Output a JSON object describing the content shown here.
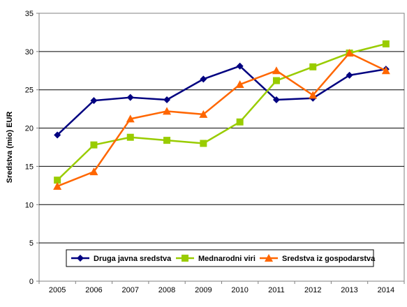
{
  "chart_data": {
    "type": "line",
    "title": "",
    "xlabel": "",
    "ylabel": "Sredstva (mio) EUR",
    "categories": [
      "2005",
      "2006",
      "2007",
      "2008",
      "2009",
      "2010",
      "2011",
      "2012",
      "2013",
      "2014"
    ],
    "ylim": [
      0,
      35
    ],
    "yticks": [
      0,
      5,
      10,
      15,
      20,
      25,
      30,
      35
    ],
    "grid": "horizontal",
    "legend_position": "bottom-right",
    "series": [
      {
        "name": "Druga javna sredstva",
        "color": "#000080",
        "marker": "diamond",
        "values": [
          19.1,
          23.6,
          24.0,
          23.7,
          26.4,
          28.1,
          23.7,
          23.9,
          26.9,
          27.7
        ]
      },
      {
        "name": "Mednarodni viri",
        "color": "#99CC00",
        "marker": "square",
        "values": [
          13.2,
          17.8,
          18.8,
          18.4,
          18.0,
          20.8,
          26.2,
          28.0,
          29.8,
          31.0
        ]
      },
      {
        "name": "Sredstva iz gospodarstva",
        "color": "#FF6600",
        "marker": "triangle",
        "values": [
          12.4,
          14.3,
          21.2,
          22.2,
          21.8,
          25.7,
          27.5,
          24.3,
          29.8,
          27.5
        ]
      }
    ]
  }
}
